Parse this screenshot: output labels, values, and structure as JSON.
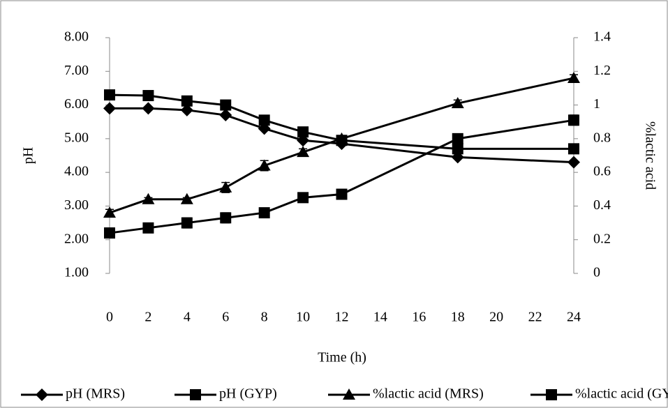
{
  "chart_data": {
    "type": "line",
    "x": [
      0,
      2,
      4,
      6,
      8,
      10,
      12,
      18,
      24
    ],
    "xlim": [
      0,
      24
    ],
    "xticks": [
      0,
      2,
      4,
      6,
      8,
      10,
      12,
      14,
      16,
      18,
      20,
      22,
      24
    ],
    "xlabel": "Time (h)",
    "ylabel": "pH",
    "y2label": "%lactic acid",
    "ylim": [
      1,
      8
    ],
    "yticks": [
      {
        "value": 1,
        "label": "1.00"
      },
      {
        "value": 2,
        "label": "2.00"
      },
      {
        "value": 3,
        "label": "3.00"
      },
      {
        "value": 4,
        "label": "4.00"
      },
      {
        "value": 5,
        "label": "5.00"
      },
      {
        "value": 6,
        "label": "6.00"
      },
      {
        "value": 7,
        "label": "7.00"
      },
      {
        "value": 8,
        "label": "8.00"
      }
    ],
    "y2lim": [
      0,
      1.4
    ],
    "y2ticks": [
      0,
      0.2,
      0.4,
      0.6,
      0.8,
      1,
      1.2,
      1.4
    ],
    "legend": "bottom",
    "series": [
      {
        "name": "pH (MRS)",
        "color": "#000000",
        "marker": "diamond",
        "values": [
          5.9,
          5.9,
          5.85,
          5.7,
          5.3,
          4.95,
          4.85,
          4.45,
          4.3
        ]
      },
      {
        "name": "pH (GYP)",
        "color": "#000000",
        "marker": "square",
        "values": [
          6.3,
          6.28,
          6.12,
          6.0,
          5.55,
          5.2,
          4.95,
          4.7,
          4.7
        ]
      },
      {
        "name": "%lactic acid (MRS)",
        "color": "#000000",
        "marker": "triangle",
        "axis": "y2",
        "values": [
          0.36,
          0.44,
          0.44,
          0.51,
          0.64,
          0.72,
          0.8,
          1.01,
          1.16
        ],
        "errors": [
          0.02,
          0.01,
          0.01,
          0.03,
          0.03,
          0.02,
          0.01,
          0.02,
          0.02
        ]
      },
      {
        "name": "%lactic acid (GYP)",
        "color": "#000000",
        "marker": "square",
        "axis": "y2",
        "values": [
          0.24,
          0.27,
          0.3,
          0.33,
          0.36,
          0.45,
          0.47,
          0.8,
          0.91
        ],
        "errors": [
          0.03,
          0.01,
          0.03,
          0.03,
          0.01,
          0.01,
          0.03,
          0.01,
          0.03
        ]
      }
    ]
  }
}
